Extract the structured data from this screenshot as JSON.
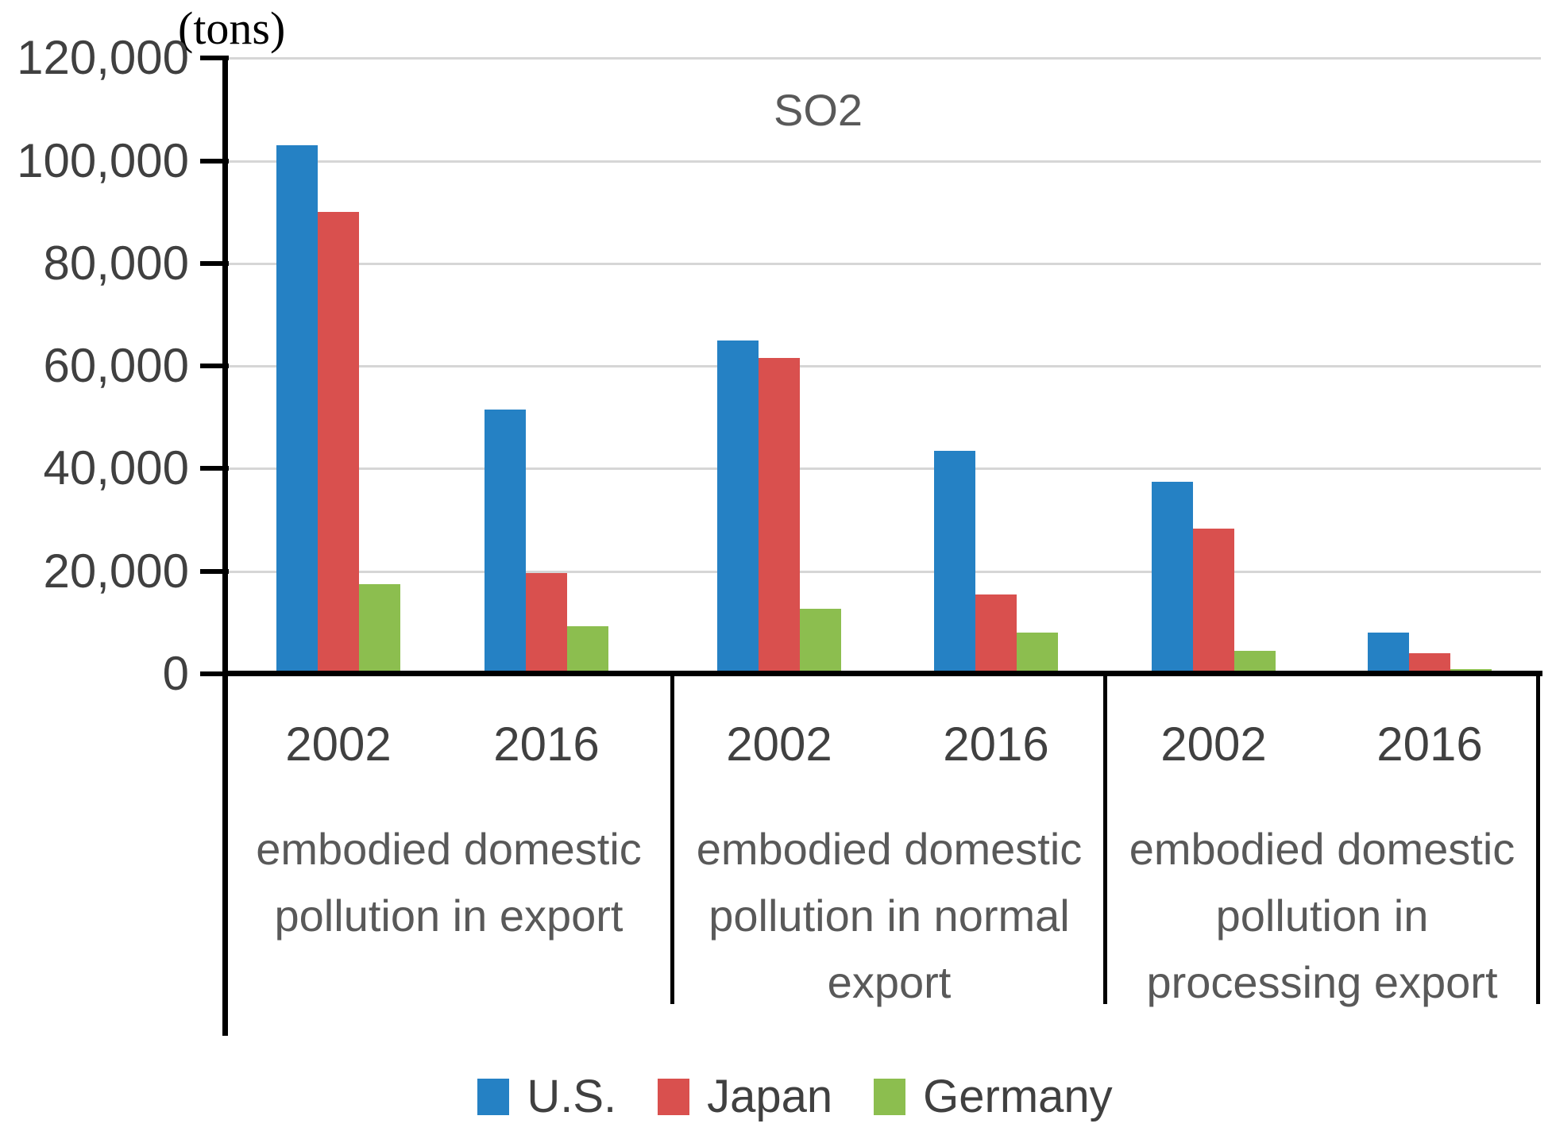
{
  "chart": {
    "units_label": "(tons)",
    "title": "SO2"
  },
  "chart_data": {
    "type": "bar",
    "title": "SO2",
    "units_label": "(tons)",
    "ylim": [
      0,
      120000
    ],
    "y_tick_interval": 20000,
    "y_tick_labels": [
      "120,000",
      "100,000",
      "80,000",
      "60,000",
      "40,000",
      "20,000",
      "0"
    ],
    "y_tick_values": [
      120000,
      100000,
      80000,
      60000,
      40000,
      20000,
      0
    ],
    "grid": true,
    "legend_position": "bottom",
    "groups": [
      {
        "label": "embodied domestic pollution in export",
        "label_lines": "embodied domestic\npollution in export",
        "years": [
          "2002",
          "2016"
        ]
      },
      {
        "label": "embodied domestic pollution in normal export",
        "label_lines": "embodied domestic\npollution in normal\nexport",
        "years": [
          "2002",
          "2016"
        ]
      },
      {
        "label": "embodied domestic pollution in processing export",
        "label_lines": "embodied domestic\npollution in\nprocessing export",
        "years": [
          "2002",
          "2016"
        ]
      }
    ],
    "clusters": [
      {
        "group": "embodied domestic pollution in export",
        "year": "2002"
      },
      {
        "group": "embodied domestic pollution in export",
        "year": "2016"
      },
      {
        "group": "embodied domestic pollution in normal export",
        "year": "2002"
      },
      {
        "group": "embodied domestic pollution in normal export",
        "year": "2016"
      },
      {
        "group": "embodied domestic pollution in processing export",
        "year": "2002"
      },
      {
        "group": "embodied domestic pollution in processing export",
        "year": "2016"
      }
    ],
    "series": [
      {
        "name": "U.S.",
        "color": "#2581C4",
        "values": [
          103000,
          51500,
          65000,
          43500,
          37500,
          8000
        ]
      },
      {
        "name": "Japan",
        "color": "#D9504E",
        "values": [
          90000,
          19700,
          61500,
          15500,
          28300,
          4000
        ]
      },
      {
        "name": "Germany",
        "color": "#8CBE4F",
        "values": [
          17500,
          9300,
          12700,
          8000,
          4500,
          1000
        ]
      }
    ],
    "colors": {
      "grid": "#D6D6D6",
      "axis": "#000000",
      "group_label_text": "#595959",
      "tick_label_text": "#404040",
      "title_text": "#595959"
    }
  }
}
